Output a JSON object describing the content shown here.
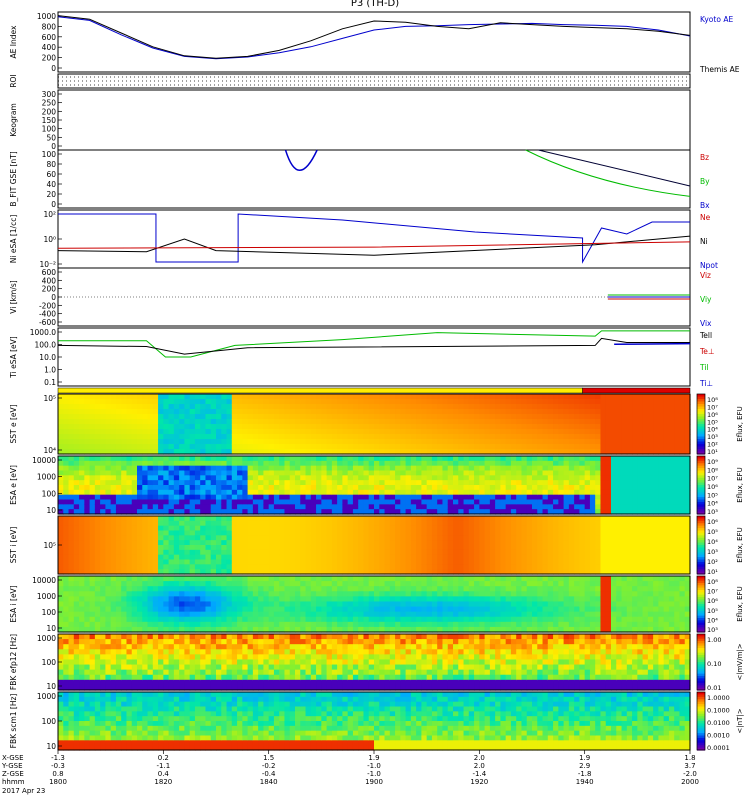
{
  "title": "P3 (TH-D)",
  "chart_data": {
    "type": "stacked-timeseries",
    "title": "P3 (TH-D)",
    "date": "2017 Apr 23",
    "xlabel": "hhmm",
    "x_ticks": [
      "1800",
      "1820",
      "1840",
      "1900",
      "1920",
      "1940",
      "2000"
    ],
    "x_tick_rows": [
      {
        "label": "X-GSE",
        "values": [
          "-1.3",
          "0.2",
          "1.5",
          "1.9",
          "2.0",
          "1.9",
          "1.8"
        ]
      },
      {
        "label": "Y-GSE",
        "values": [
          "-0.3",
          "-1.1",
          "-0.2",
          "-1.0",
          "2.0",
          "2.9",
          "3.7"
        ]
      },
      {
        "label": "Z-GSE",
        "values": [
          "0.8",
          "0.4",
          "-0.4",
          "-1.0",
          "-1.4",
          "-1.8",
          "-2.0"
        ]
      }
    ],
    "panels": [
      {
        "id": "ae",
        "ylabel": "AE Index",
        "yticks": [
          "1000",
          "800",
          "600",
          "400",
          "200",
          "0"
        ],
        "legend": [
          {
            "name": "Kyoto AE",
            "color": "#0000cc"
          },
          {
            "name": "Themis AE",
            "color": "#000000"
          }
        ],
        "series": [
          {
            "name": "Kyoto AE",
            "color": "#0000cc",
            "x": [
              0,
              0.05,
              0.1,
              0.15,
              0.2,
              0.25,
              0.3,
              0.35,
              0.4,
              0.45,
              0.5,
              0.55,
              0.6,
              0.65,
              0.7,
              0.75,
              0.8,
              0.85,
              0.9,
              0.95,
              1.0
            ],
            "values": [
              920,
              860,
              620,
              400,
              260,
              220,
              250,
              320,
              420,
              560,
              700,
              760,
              770,
              790,
              800,
              810,
              790,
              780,
              760,
              700,
              600
            ]
          },
          {
            "name": "Themis AE",
            "color": "#000000",
            "x": [
              0,
              0.05,
              0.1,
              0.15,
              0.2,
              0.25,
              0.3,
              0.35,
              0.4,
              0.45,
              0.5,
              0.55,
              0.6,
              0.65,
              0.7,
              0.75,
              0.8,
              0.85,
              0.9,
              0.95,
              1.0
            ],
            "values": [
              940,
              880,
              650,
              420,
              270,
              230,
              260,
              360,
              520,
              720,
              850,
              830,
              760,
              720,
              820,
              790,
              760,
              740,
              720,
              680,
              610
            ]
          }
        ]
      },
      {
        "id": "roi",
        "ylabel": "ROI",
        "yticks": [],
        "legend": []
      },
      {
        "id": "keogram",
        "ylabel": "Keogram",
        "yticks": [
          "300",
          "250",
          "200",
          "150",
          "100",
          "50",
          "0"
        ],
        "legend": []
      },
      {
        "id": "bfit",
        "ylabel": "B_FIT GSE [nT]",
        "yticks": [
          "100",
          "80",
          "60",
          "40",
          "20",
          "0"
        ],
        "legend": [
          {
            "name": "Bz",
            "color": "#cc0000"
          },
          {
            "name": "By",
            "color": "#00bb00"
          },
          {
            "name": "Bx",
            "color": "#0000cc"
          }
        ]
      },
      {
        "id": "density",
        "ylabel": "Ni eSA [1/cc]",
        "yticks": [
          "10²",
          "10⁰",
          "10⁻²"
        ],
        "legend": [
          {
            "name": "Ne",
            "color": "#cc0000"
          },
          {
            "name": "Ni",
            "color": "#000000"
          },
          {
            "name": "Npot",
            "color": "#0000cc"
          }
        ]
      },
      {
        "id": "velocity",
        "ylabel": "Vi [km/s]",
        "yticks": [
          "600",
          "400",
          "200",
          "0",
          "-200",
          "-400",
          "-600"
        ],
        "legend": [
          {
            "name": "Viz",
            "color": "#cc0000"
          },
          {
            "name": "Viy",
            "color": "#00bb00"
          },
          {
            "name": "Vix",
            "color": "#0000cc"
          }
        ]
      },
      {
        "id": "temperature",
        "ylabel": "Ti eSA [eV]",
        "yticks": [
          "1000.0",
          "100.0",
          "10.0",
          "1.0",
          "0.1"
        ],
        "legend": [
          {
            "name": "Tell",
            "color": "#000000"
          },
          {
            "name": "Te⊥",
            "color": "#cc0000"
          },
          {
            "name": "Til",
            "color": "#00bb00"
          },
          {
            "name": "Ti⊥",
            "color": "#0000cc"
          }
        ]
      },
      {
        "id": "sst_e",
        "ylabel": "SST e [eV]",
        "yticks": [
          "10⁵",
          "10⁴"
        ],
        "colorbar": "Eflux, EFU",
        "cbticks": [
          "10⁸",
          "10⁷",
          "10⁶",
          "10⁵",
          "10⁴",
          "10³",
          "10²",
          "10¹"
        ]
      },
      {
        "id": "esa_e",
        "ylabel": "ESA e [eV]",
        "yticks": [
          "10000",
          "1000",
          "100",
          "10"
        ],
        "colorbar": "Eflux, EFU",
        "cbticks": [
          "10⁹",
          "10⁸",
          "10⁷",
          "10⁶",
          "10⁵",
          "10⁴",
          "10³"
        ]
      },
      {
        "id": "sst_i",
        "ylabel": "SST i [eV]",
        "yticks": [
          "10⁵"
        ],
        "colorbar": "Eflux, EFU",
        "cbticks": [
          "10⁶",
          "10⁵",
          "10⁴",
          "10³",
          "10²",
          "10¹"
        ]
      },
      {
        "id": "esa_i",
        "ylabel": "ESA i [eV]",
        "yticks": [
          "10000",
          "1000",
          "100",
          "10"
        ],
        "colorbar": "Eflux, EFU",
        "cbticks": [
          "10⁸",
          "10⁷",
          "10⁶",
          "10⁵",
          "10⁴",
          "10³"
        ]
      },
      {
        "id": "fbk_e",
        "ylabel": "FBK efp12 [Hz]",
        "yticks": [
          "1000",
          "100",
          "10"
        ],
        "colorbar": "<|mV/m|>",
        "cbticks": [
          "1.00",
          "0.10",
          "0.01"
        ]
      },
      {
        "id": "fbk_b",
        "ylabel": "FBK scm1 [Hz]",
        "yticks": [
          "1000",
          "100",
          "10"
        ],
        "colorbar": "<|nT|>",
        "cbticks": [
          "1.0000",
          "0.1000",
          "0.0100",
          "0.0010",
          "0.0001"
        ]
      }
    ]
  }
}
